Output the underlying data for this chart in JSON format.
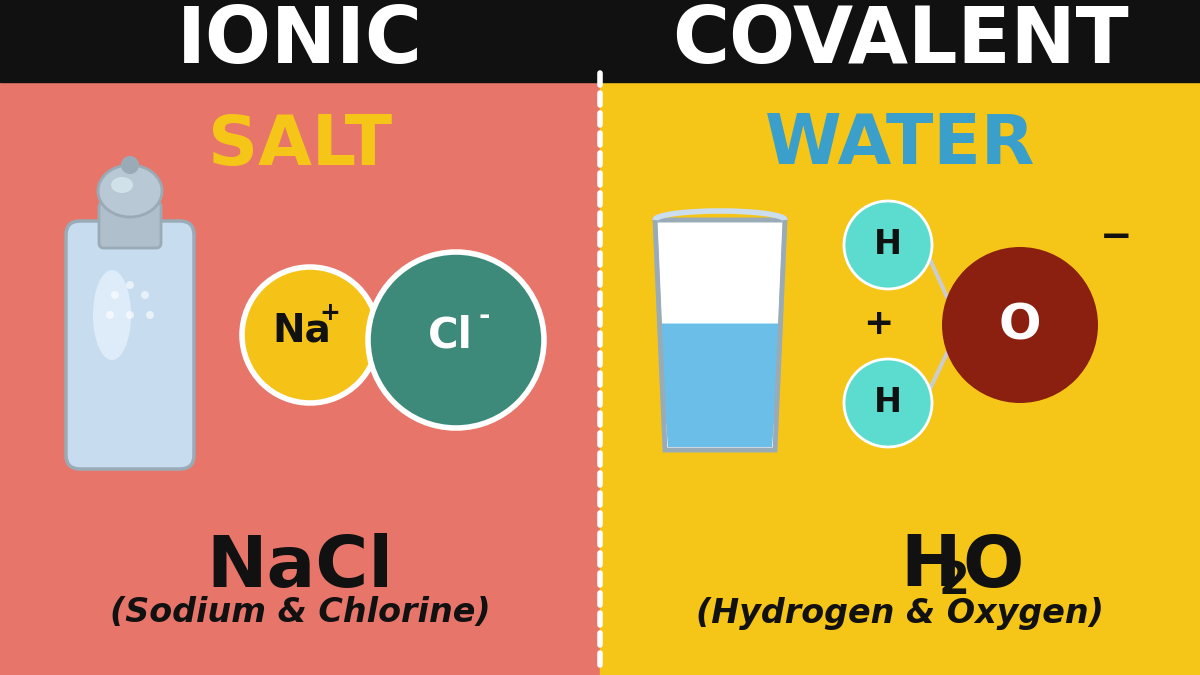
{
  "bg_left": "#E8756A",
  "bg_right": "#F5C518",
  "header_bg": "#111111",
  "title_left": "IONIC",
  "title_right": "COVALENT",
  "title_color": "#FFFFFF",
  "label_left": "SALT",
  "label_left_color": "#F5C518",
  "label_right": "WATER",
  "label_right_color": "#3B9FCC",
  "subtext_left": "(Sodium & Chlorine)",
  "subtext_right": "(Hydrogen & Oxygen)",
  "na_color": "#F5C218",
  "cl_color": "#3D8A7A",
  "h_color": "#5CDCCF",
  "o_color": "#8B2010",
  "water_fill": "#6BBEE8",
  "shaker_body": "#C8DCF0",
  "shaker_highlight": "#E8F4FF",
  "shaker_cap": "#AABBCC",
  "shaker_edge": "#9AABB8"
}
